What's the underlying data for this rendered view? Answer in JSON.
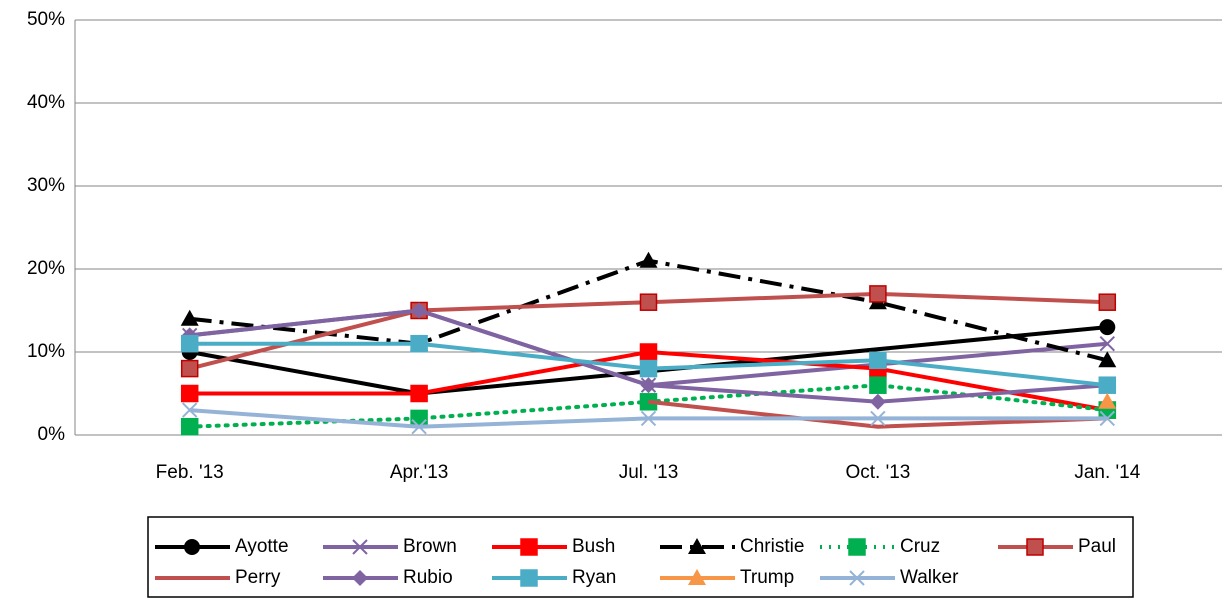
{
  "chart_data": {
    "type": "line",
    "categories": [
      "Feb. '13",
      "Apr.'13",
      "Jul. '13",
      "Oct. '13",
      "Jan. '14"
    ],
    "ylim": [
      0,
      50
    ],
    "yticks": [
      {
        "value": 0,
        "label": "0%"
      },
      {
        "value": 10,
        "label": "10%"
      },
      {
        "value": 20,
        "label": "20%"
      },
      {
        "value": 30,
        "label": "30%"
      },
      {
        "value": 40,
        "label": "40%"
      },
      {
        "value": 50,
        "label": "50%"
      }
    ],
    "grid": true,
    "connect_gaps": true,
    "legend": "bottom",
    "series": [
      {
        "name": "Ayotte",
        "color": "#000000",
        "marker": "circle",
        "dash": "solid",
        "values": [
          10,
          5,
          null,
          null,
          13
        ]
      },
      {
        "name": "Brown",
        "color": "#8064a2",
        "marker": "x",
        "dash": "solid",
        "values": [
          12,
          15,
          6,
          null,
          11
        ]
      },
      {
        "name": "Bush",
        "color": "#ff0000",
        "marker": "square",
        "dash": "solid",
        "values": [
          5,
          5,
          10,
          8,
          3
        ]
      },
      {
        "name": "Christie",
        "color": "#000000",
        "marker": "triangle",
        "dash": "dashdot",
        "values": [
          14,
          11,
          21,
          16,
          9
        ]
      },
      {
        "name": "Cruz",
        "color": "#00b050",
        "marker": "square",
        "dash": "dot",
        "values": [
          1,
          2,
          4,
          6,
          3
        ]
      },
      {
        "name": "Paul",
        "color": "#c0504d",
        "marker": "square",
        "dash": "solid",
        "values": [
          8,
          15,
          16,
          17,
          16
        ]
      },
      {
        "name": "Perry",
        "color": "#c0504d",
        "marker": "none",
        "dash": "solid",
        "values": [
          null,
          null,
          4,
          1,
          2
        ]
      },
      {
        "name": "Rubio",
        "color": "#8064a2",
        "marker": "diamond",
        "dash": "solid",
        "values": [
          12,
          15,
          6,
          4,
          6
        ]
      },
      {
        "name": "Ryan",
        "color": "#4bacc6",
        "marker": "square",
        "dash": "solid",
        "values": [
          11,
          11,
          8,
          9,
          6
        ]
      },
      {
        "name": "Trump",
        "color": "#f79646",
        "marker": "triangle",
        "dash": "solid",
        "values": [
          null,
          null,
          null,
          null,
          4
        ]
      },
      {
        "name": "Walker",
        "color": "#95b3d7",
        "marker": "x",
        "dash": "solid",
        "values": [
          3,
          1,
          2,
          2,
          2
        ]
      }
    ]
  }
}
